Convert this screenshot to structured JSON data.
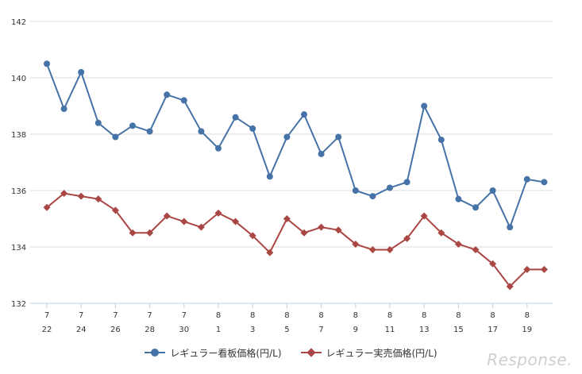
{
  "chart_data": {
    "type": "line",
    "title": "",
    "xlabel": "",
    "ylabel": "",
    "ylim": [
      132,
      142
    ],
    "yticks": [
      "142",
      "140",
      "138",
      "136",
      "134",
      "132"
    ],
    "grid": true,
    "legend_placement": "bottom",
    "x_month_labels": [
      "7",
      "7",
      "7",
      "7",
      "7",
      "8",
      "8",
      "8",
      "8",
      "8",
      "8",
      "8",
      "8",
      "8",
      "8"
    ],
    "x_day_labels": [
      "22",
      "24",
      "26",
      "28",
      "30",
      "1",
      "3",
      "5",
      "7",
      "9",
      "11",
      "13",
      "15",
      "17",
      "19"
    ],
    "series": [
      {
        "name": "レギュラー看板価格(円/L)",
        "color": "#4572a7",
        "marker": "circle",
        "values": [
          140.5,
          138.9,
          140.2,
          138.4,
          137.9,
          138.3,
          138.1,
          139.4,
          139.2,
          138.1,
          137.5,
          138.6,
          138.2,
          136.5,
          137.9,
          138.7,
          137.3,
          137.9,
          136.0,
          135.8,
          136.1,
          136.3,
          139.0,
          137.8,
          135.7,
          135.4,
          136.0,
          134.7,
          136.4,
          136.3
        ]
      },
      {
        "name": "レギュラー実売価格(円/L)",
        "color": "#aa4643",
        "marker": "diamond",
        "values": [
          135.4,
          135.9,
          135.8,
          135.7,
          135.3,
          134.5,
          134.5,
          135.1,
          134.9,
          134.7,
          135.2,
          134.9,
          134.4,
          133.8,
          135.0,
          134.5,
          134.7,
          134.6,
          134.1,
          133.9,
          133.9,
          134.3,
          135.1,
          134.5,
          134.1,
          133.9,
          133.4,
          132.6,
          133.2,
          133.2
        ]
      }
    ]
  },
  "watermark": "Response."
}
